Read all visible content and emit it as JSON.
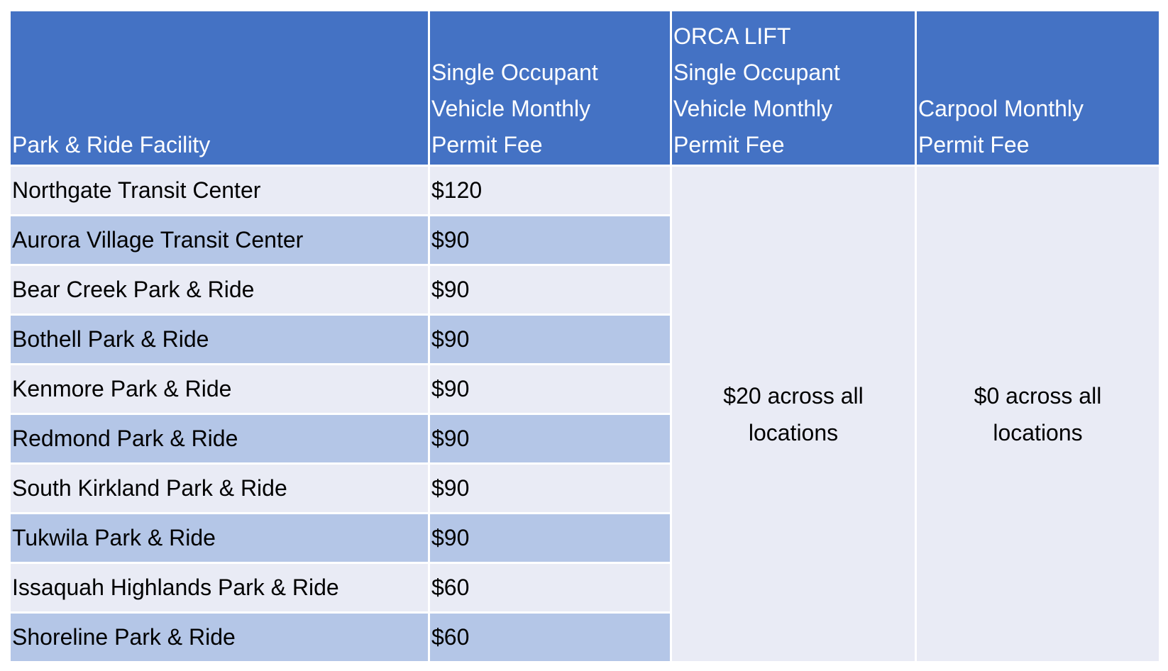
{
  "table": {
    "header": [
      [
        "Park & Ride Facility"
      ],
      [
        "Single Occupant",
        "Vehicle Monthly",
        "Permit Fee"
      ],
      [
        "ORCA LIFT",
        "Single Occupant",
        "Vehicle Monthly",
        "Permit Fee"
      ],
      [
        "Carpool Monthly",
        "Permit Fee"
      ]
    ],
    "rows": [
      [
        "Northgate Transit Center",
        "$120"
      ],
      [
        "Aurora Village Transit Center",
        "$90"
      ],
      [
        "Bear Creek Park & Ride",
        "$90"
      ],
      [
        "Bothell Park & Ride",
        "$90"
      ],
      [
        "Kenmore Park & Ride",
        "$90"
      ],
      [
        "Redmond Park & Ride",
        "$90"
      ],
      [
        "South Kirkland Park & Ride",
        "$90"
      ],
      [
        "Tukwila Park & Ride",
        "$90"
      ],
      [
        "Issaquah Highlands Park & Ride",
        "$60"
      ],
      [
        "Shoreline Park & Ride",
        "$60"
      ]
    ],
    "orca_lift_fee": [
      "$20 across all",
      "locations"
    ],
    "carpool_fee": [
      "$0 across all",
      "locations"
    ]
  }
}
